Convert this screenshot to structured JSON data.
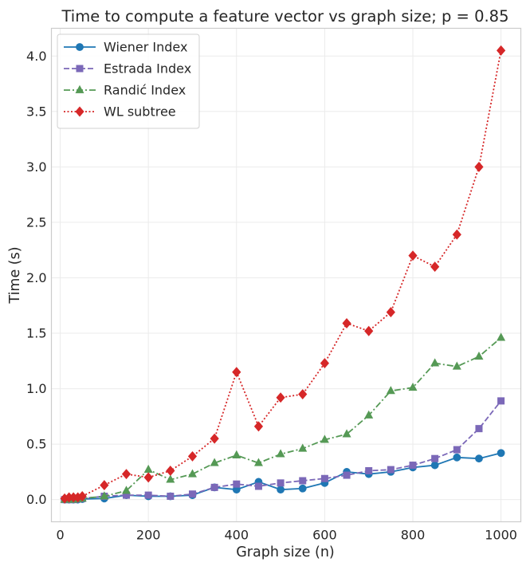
{
  "chart_data": {
    "type": "line",
    "title": "Time to compute a feature vector vs graph size; p = 0.85",
    "xlabel": "Graph size (n)",
    "ylabel": "Time (s)",
    "xlim": [
      -20,
      1045
    ],
    "ylim": [
      -0.2,
      4.25
    ],
    "xticks": [
      0,
      200,
      400,
      600,
      800,
      1000
    ],
    "yticks": [
      0.0,
      0.5,
      1.0,
      1.5,
      2.0,
      2.5,
      3.0,
      3.5,
      4.0
    ],
    "xtick_labels": [
      "0",
      "200",
      "400",
      "600",
      "800",
      "1000"
    ],
    "ytick_labels": [
      "0.0",
      "0.5",
      "1.0",
      "1.5",
      "2.0",
      "2.5",
      "3.0",
      "3.5",
      "4.0"
    ],
    "grid": true,
    "legend_position": "top-left",
    "x": [
      10,
      20,
      30,
      40,
      50,
      100,
      150,
      200,
      250,
      300,
      350,
      400,
      450,
      500,
      550,
      600,
      650,
      700,
      750,
      800,
      850,
      900,
      950,
      1000
    ],
    "series": [
      {
        "name": "Wiener Index",
        "color": "#1f77b4",
        "marker": "circle",
        "dash": "solid",
        "values": [
          0.0,
          0.0,
          0.0,
          0.0,
          0.005,
          0.01,
          0.04,
          0.03,
          0.03,
          0.04,
          0.11,
          0.09,
          0.16,
          0.09,
          0.1,
          0.15,
          0.25,
          0.23,
          0.25,
          0.29,
          0.31,
          0.38,
          0.37,
          0.42
        ]
      },
      {
        "name": "Estrada Index",
        "color": "#7b68b8",
        "marker": "square",
        "dash": "dashed",
        "values": [
          0.0,
          0.0,
          0.0,
          0.005,
          0.01,
          0.03,
          0.04,
          0.04,
          0.03,
          0.05,
          0.11,
          0.14,
          0.12,
          0.15,
          0.17,
          0.19,
          0.22,
          0.26,
          0.27,
          0.31,
          0.37,
          0.45,
          0.64,
          0.89
        ]
      },
      {
        "name": "Randić Index",
        "color": "#559955",
        "marker": "triangle",
        "dash": "dashdot",
        "values": [
          0.0,
          0.0,
          0.0,
          0.005,
          0.01,
          0.03,
          0.08,
          0.27,
          0.18,
          0.23,
          0.33,
          0.4,
          0.33,
          0.41,
          0.46,
          0.54,
          0.59,
          0.76,
          0.98,
          1.01,
          1.23,
          1.2,
          1.29,
          1.46
        ]
      },
      {
        "name": "WL subtree",
        "color": "#d62728",
        "marker": "diamond",
        "dash": "dotted",
        "values": [
          0.01,
          0.02,
          0.02,
          0.02,
          0.03,
          0.13,
          0.23,
          0.2,
          0.26,
          0.39,
          0.55,
          1.15,
          0.66,
          0.92,
          0.95,
          1.23,
          1.59,
          1.52,
          1.69,
          2.2,
          2.1,
          2.39,
          3.0,
          4.05
        ]
      }
    ]
  }
}
